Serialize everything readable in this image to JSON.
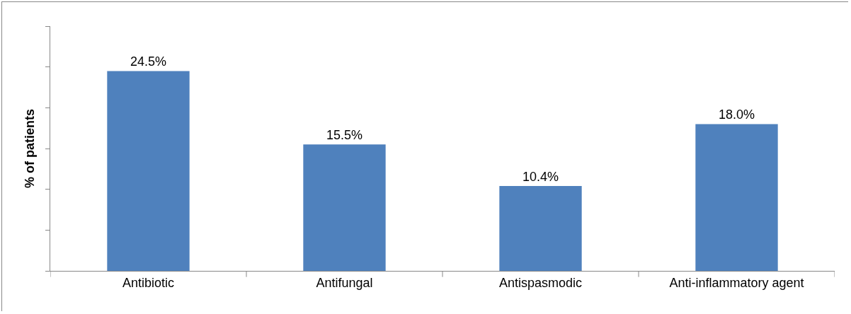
{
  "chart_data": {
    "type": "bar",
    "ylabel": "% of patients",
    "categories": [
      "Antibiotic",
      "Antifungal",
      "Antispasmodic",
      "Anti-inflammatory agent"
    ],
    "values": [
      24.5,
      15.5,
      10.4,
      18.0
    ],
    "value_labels": [
      "24.5%",
      "15.5%",
      "10.4%",
      "18.0%"
    ],
    "color": "#4f81bd",
    "ylim": [
      0,
      30
    ],
    "yticks": [
      {
        "value": 0,
        "label": null
      },
      {
        "value": 5,
        "label": null
      },
      {
        "value": 10,
        "label": null
      },
      {
        "value": 15,
        "label": null
      },
      {
        "value": 20,
        "label": null
      },
      {
        "value": 25,
        "label": null
      },
      {
        "value": 30,
        "label": null
      }
    ],
    "tick_labels": "x",
    "grid": false
  }
}
